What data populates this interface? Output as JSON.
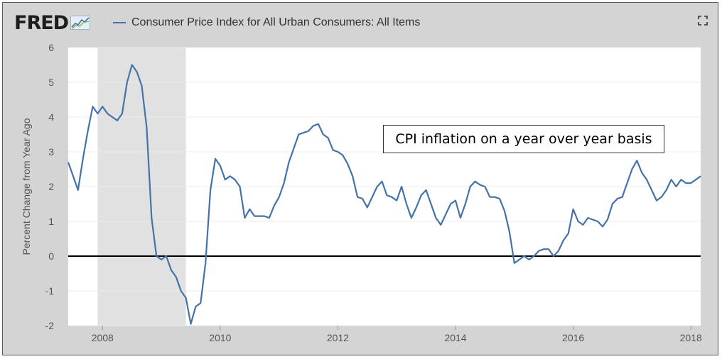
{
  "header": {
    "logo_text": "FRED",
    "logo_icon": "chart-line-icon",
    "legend_label": "Consumer Price Index for All Urban Consumers: All Items",
    "expand_icon": "expand-icon"
  },
  "annotation": "CPI inflation on a year over year basis",
  "colors": {
    "line": "#4572a7",
    "recession": "#e1e1e1",
    "frame": "#d4d4d4",
    "zero_line": "#000000"
  },
  "chart_data": {
    "type": "line",
    "title": "Consumer Price Index for All Urban Consumers: All Items",
    "ylabel": "Percent Change from Year Ago",
    "xlabel": "",
    "xlim": [
      "2007-06",
      "2018-03"
    ],
    "ylim": [
      -2,
      6
    ],
    "yticks": [
      -2,
      -1,
      0,
      1,
      2,
      3,
      4,
      5,
      6
    ],
    "xticks": [
      "2008",
      "2010",
      "2012",
      "2014",
      "2016",
      "2018"
    ],
    "grid": "horizontal",
    "recession_shading": [
      [
        "2007-12",
        "2009-06"
      ]
    ],
    "zero_line": true,
    "series": [
      {
        "name": "Consumer Price Index for All Urban Consumers: All Items",
        "x": [
          "2007-06",
          "2007-07",
          "2007-08",
          "2007-09",
          "2007-10",
          "2007-11",
          "2007-12",
          "2008-01",
          "2008-02",
          "2008-03",
          "2008-04",
          "2008-05",
          "2008-06",
          "2008-07",
          "2008-08",
          "2008-09",
          "2008-10",
          "2008-11",
          "2008-12",
          "2009-01",
          "2009-02",
          "2009-03",
          "2009-04",
          "2009-05",
          "2009-06",
          "2009-07",
          "2009-08",
          "2009-09",
          "2009-10",
          "2009-11",
          "2009-12",
          "2010-01",
          "2010-02",
          "2010-03",
          "2010-04",
          "2010-05",
          "2010-06",
          "2010-07",
          "2010-08",
          "2010-09",
          "2010-10",
          "2010-11",
          "2010-12",
          "2011-01",
          "2011-02",
          "2011-03",
          "2011-04",
          "2011-05",
          "2011-06",
          "2011-07",
          "2011-08",
          "2011-09",
          "2011-10",
          "2011-11",
          "2011-12",
          "2012-01",
          "2012-02",
          "2012-03",
          "2012-04",
          "2012-05",
          "2012-06",
          "2012-07",
          "2012-08",
          "2012-09",
          "2012-10",
          "2012-11",
          "2012-12",
          "2013-01",
          "2013-02",
          "2013-03",
          "2013-04",
          "2013-05",
          "2013-06",
          "2013-07",
          "2013-08",
          "2013-09",
          "2013-10",
          "2013-11",
          "2013-12",
          "2014-01",
          "2014-02",
          "2014-03",
          "2014-04",
          "2014-05",
          "2014-06",
          "2014-07",
          "2014-08",
          "2014-09",
          "2014-10",
          "2014-11",
          "2014-12",
          "2015-01",
          "2015-02",
          "2015-03",
          "2015-04",
          "2015-05",
          "2015-06",
          "2015-07",
          "2015-08",
          "2015-09",
          "2015-10",
          "2015-11",
          "2015-12",
          "2016-01",
          "2016-02",
          "2016-03",
          "2016-04",
          "2016-05",
          "2016-06",
          "2016-07",
          "2016-08",
          "2016-09",
          "2016-10",
          "2016-11",
          "2016-12",
          "2017-01",
          "2017-02",
          "2017-03",
          "2017-04",
          "2017-05",
          "2017-06",
          "2017-07",
          "2017-08",
          "2017-09",
          "2017-10",
          "2017-11",
          "2017-12",
          "2018-01",
          "2018-02",
          "2018-03"
        ],
        "values": [
          2.7,
          2.3,
          1.9,
          2.8,
          3.6,
          4.3,
          4.1,
          4.3,
          4.1,
          4.0,
          3.9,
          4.1,
          5.0,
          5.5,
          5.3,
          4.9,
          3.7,
          1.1,
          0.0,
          -0.1,
          0.0,
          -0.4,
          -0.6,
          -1.0,
          -1.2,
          -1.95,
          -1.45,
          -1.35,
          -0.2,
          1.9,
          2.8,
          2.6,
          2.2,
          2.3,
          2.2,
          2.0,
          1.1,
          1.35,
          1.15,
          1.15,
          1.15,
          1.1,
          1.45,
          1.7,
          2.1,
          2.7,
          3.1,
          3.5,
          3.55,
          3.6,
          3.75,
          3.8,
          3.5,
          3.4,
          3.05,
          3.0,
          2.9,
          2.65,
          2.3,
          1.7,
          1.65,
          1.4,
          1.7,
          2.0,
          2.15,
          1.75,
          1.7,
          1.6,
          2.0,
          1.5,
          1.1,
          1.4,
          1.75,
          1.9,
          1.5,
          1.1,
          0.9,
          1.2,
          1.5,
          1.6,
          1.1,
          1.5,
          2.0,
          2.15,
          2.05,
          2.0,
          1.7,
          1.7,
          1.65,
          1.3,
          0.7,
          -0.2,
          -0.1,
          0.0,
          -0.1,
          0.0,
          0.15,
          0.2,
          0.2,
          0.0,
          0.15,
          0.45,
          0.65,
          1.35,
          1.0,
          0.9,
          1.1,
          1.05,
          1.0,
          0.85,
          1.05,
          1.5,
          1.65,
          1.7,
          2.1,
          2.5,
          2.75,
          2.4,
          2.2,
          1.9,
          1.6,
          1.7,
          1.9,
          2.2,
          2.0,
          2.2,
          2.1,
          2.1,
          2.2,
          2.3
        ]
      }
    ]
  }
}
